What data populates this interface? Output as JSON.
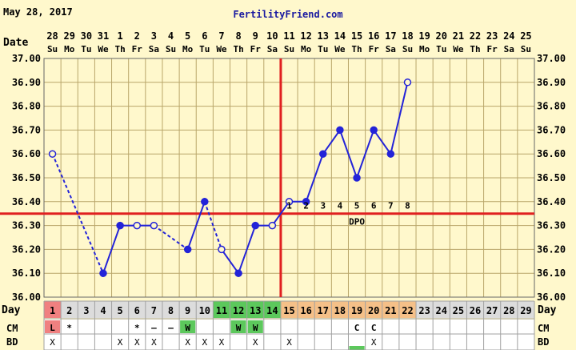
{
  "header": {
    "date": "May 28, 2017",
    "brand": "FertilityFriend.com"
  },
  "labels": {
    "date_row": "Date",
    "day_row": "Day",
    "cm_row": "CM",
    "bd_row": "BD",
    "dpo": "DPO"
  },
  "colors": {
    "background": "#fff8cc",
    "grid": "#b9a66a",
    "temp_line": "#2323d8",
    "coverline": "#e02020",
    "day1": "#f08080",
    "fertile": "#5cc85c",
    "luteal": "#f5c088",
    "brand": "#1a1aa0"
  },
  "chart_data": {
    "type": "line",
    "title": "",
    "xlabel": "Day",
    "ylabel": "",
    "ylim": [
      36.0,
      37.0
    ],
    "yticks": [
      "36.00",
      "36.10",
      "36.20",
      "36.30",
      "36.40",
      "36.50",
      "36.60",
      "36.70",
      "36.80",
      "36.90",
      "37.00"
    ],
    "x": [
      1,
      2,
      3,
      4,
      5,
      6,
      7,
      8,
      9,
      10,
      11,
      12,
      13,
      14,
      15,
      16,
      17,
      18,
      19,
      20,
      21,
      22,
      23,
      24,
      25,
      26,
      27,
      28,
      29
    ],
    "dates": [
      "28",
      "29",
      "30",
      "31",
      "1",
      "2",
      "3",
      "4",
      "5",
      "6",
      "7",
      "8",
      "9",
      "10",
      "11",
      "12",
      "13",
      "14",
      "15",
      "16",
      "17",
      "18",
      "19",
      "20",
      "21",
      "22",
      "23",
      "24",
      "25"
    ],
    "weekdays": [
      "Su",
      "Mo",
      "Tu",
      "We",
      "Th",
      "Fr",
      "Sa",
      "Su",
      "Mo",
      "Tu",
      "We",
      "Th",
      "Fr",
      "Sa",
      "Su",
      "Mo",
      "Tu",
      "We",
      "Th",
      "Fr",
      "Sa",
      "Su",
      "Mo",
      "Tu",
      "We",
      "Th",
      "Fr",
      "Sa",
      "Su"
    ],
    "temps": [
      36.6,
      null,
      null,
      36.1,
      36.3,
      36.3,
      36.3,
      null,
      36.2,
      36.4,
      36.2,
      36.1,
      36.3,
      36.3,
      36.4,
      36.4,
      36.6,
      36.7,
      36.5,
      36.7,
      36.6,
      36.9,
      null,
      null,
      null,
      null,
      null,
      null,
      null
    ],
    "open_points": [
      1,
      6,
      7,
      11,
      14,
      15,
      22
    ],
    "dashed_segments": [
      [
        1,
        4
      ],
      [
        7,
        9
      ],
      [
        10,
        11
      ]
    ],
    "coverline": 36.35,
    "ovulation_day": 14,
    "dpo_labels": [
      "1",
      "2",
      "3",
      "4",
      "5",
      "6",
      "7",
      "8"
    ],
    "cm": [
      "L",
      "*",
      "",
      "",
      "",
      "*",
      "–",
      "–",
      "W",
      "",
      "",
      "W",
      "W",
      "",
      "",
      "",
      "",
      "",
      "C",
      "C",
      "",
      "",
      "",
      "",
      "",
      "",
      "",
      "",
      ""
    ],
    "bd": [
      "X",
      "",
      "",
      "",
      "X",
      "X",
      "X",
      "",
      "X",
      "X",
      "X",
      "",
      "X",
      "",
      "X",
      "",
      "",
      "",
      "",
      "X",
      "",
      "",
      "",
      "",
      "",
      "",
      "",
      "",
      ""
    ],
    "day_colors": {
      "1": "day1",
      "11": "fertile",
      "12": "fertile",
      "13": "fertile",
      "14": "fertile",
      "15": "luteal",
      "16": "luteal",
      "17": "luteal",
      "18": "luteal",
      "19": "luteal",
      "20": "luteal",
      "21": "luteal",
      "22": "luteal"
    },
    "cm_colors": {
      "1": "day1",
      "9": "fertile",
      "12": "fertile",
      "13": "fertile"
    },
    "bd_colors": {
      "19": "fertile"
    }
  }
}
